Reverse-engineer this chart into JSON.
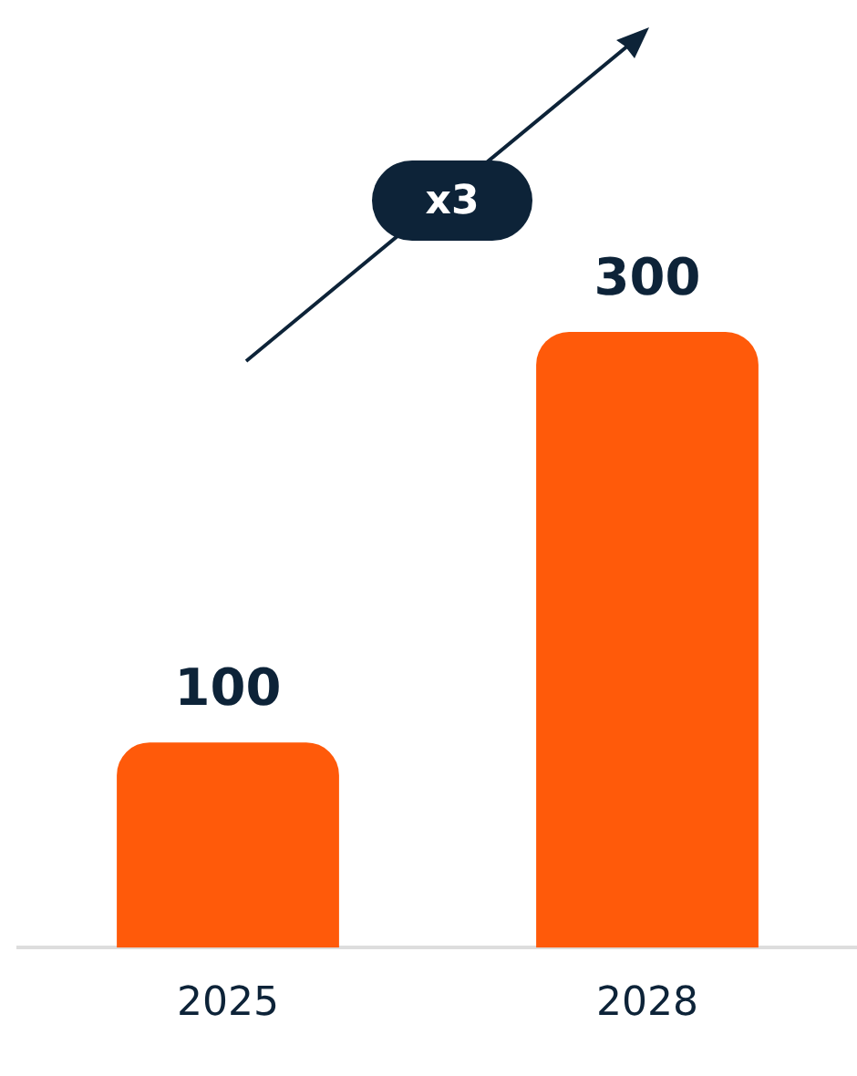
{
  "chart_data": {
    "type": "bar",
    "categories": [
      "2025",
      "2028"
    ],
    "values": [
      100,
      300
    ],
    "color": "#ff5a0a",
    "tick_labels": "x",
    "data_labels": true,
    "annotations": [
      "x3"
    ]
  }
}
